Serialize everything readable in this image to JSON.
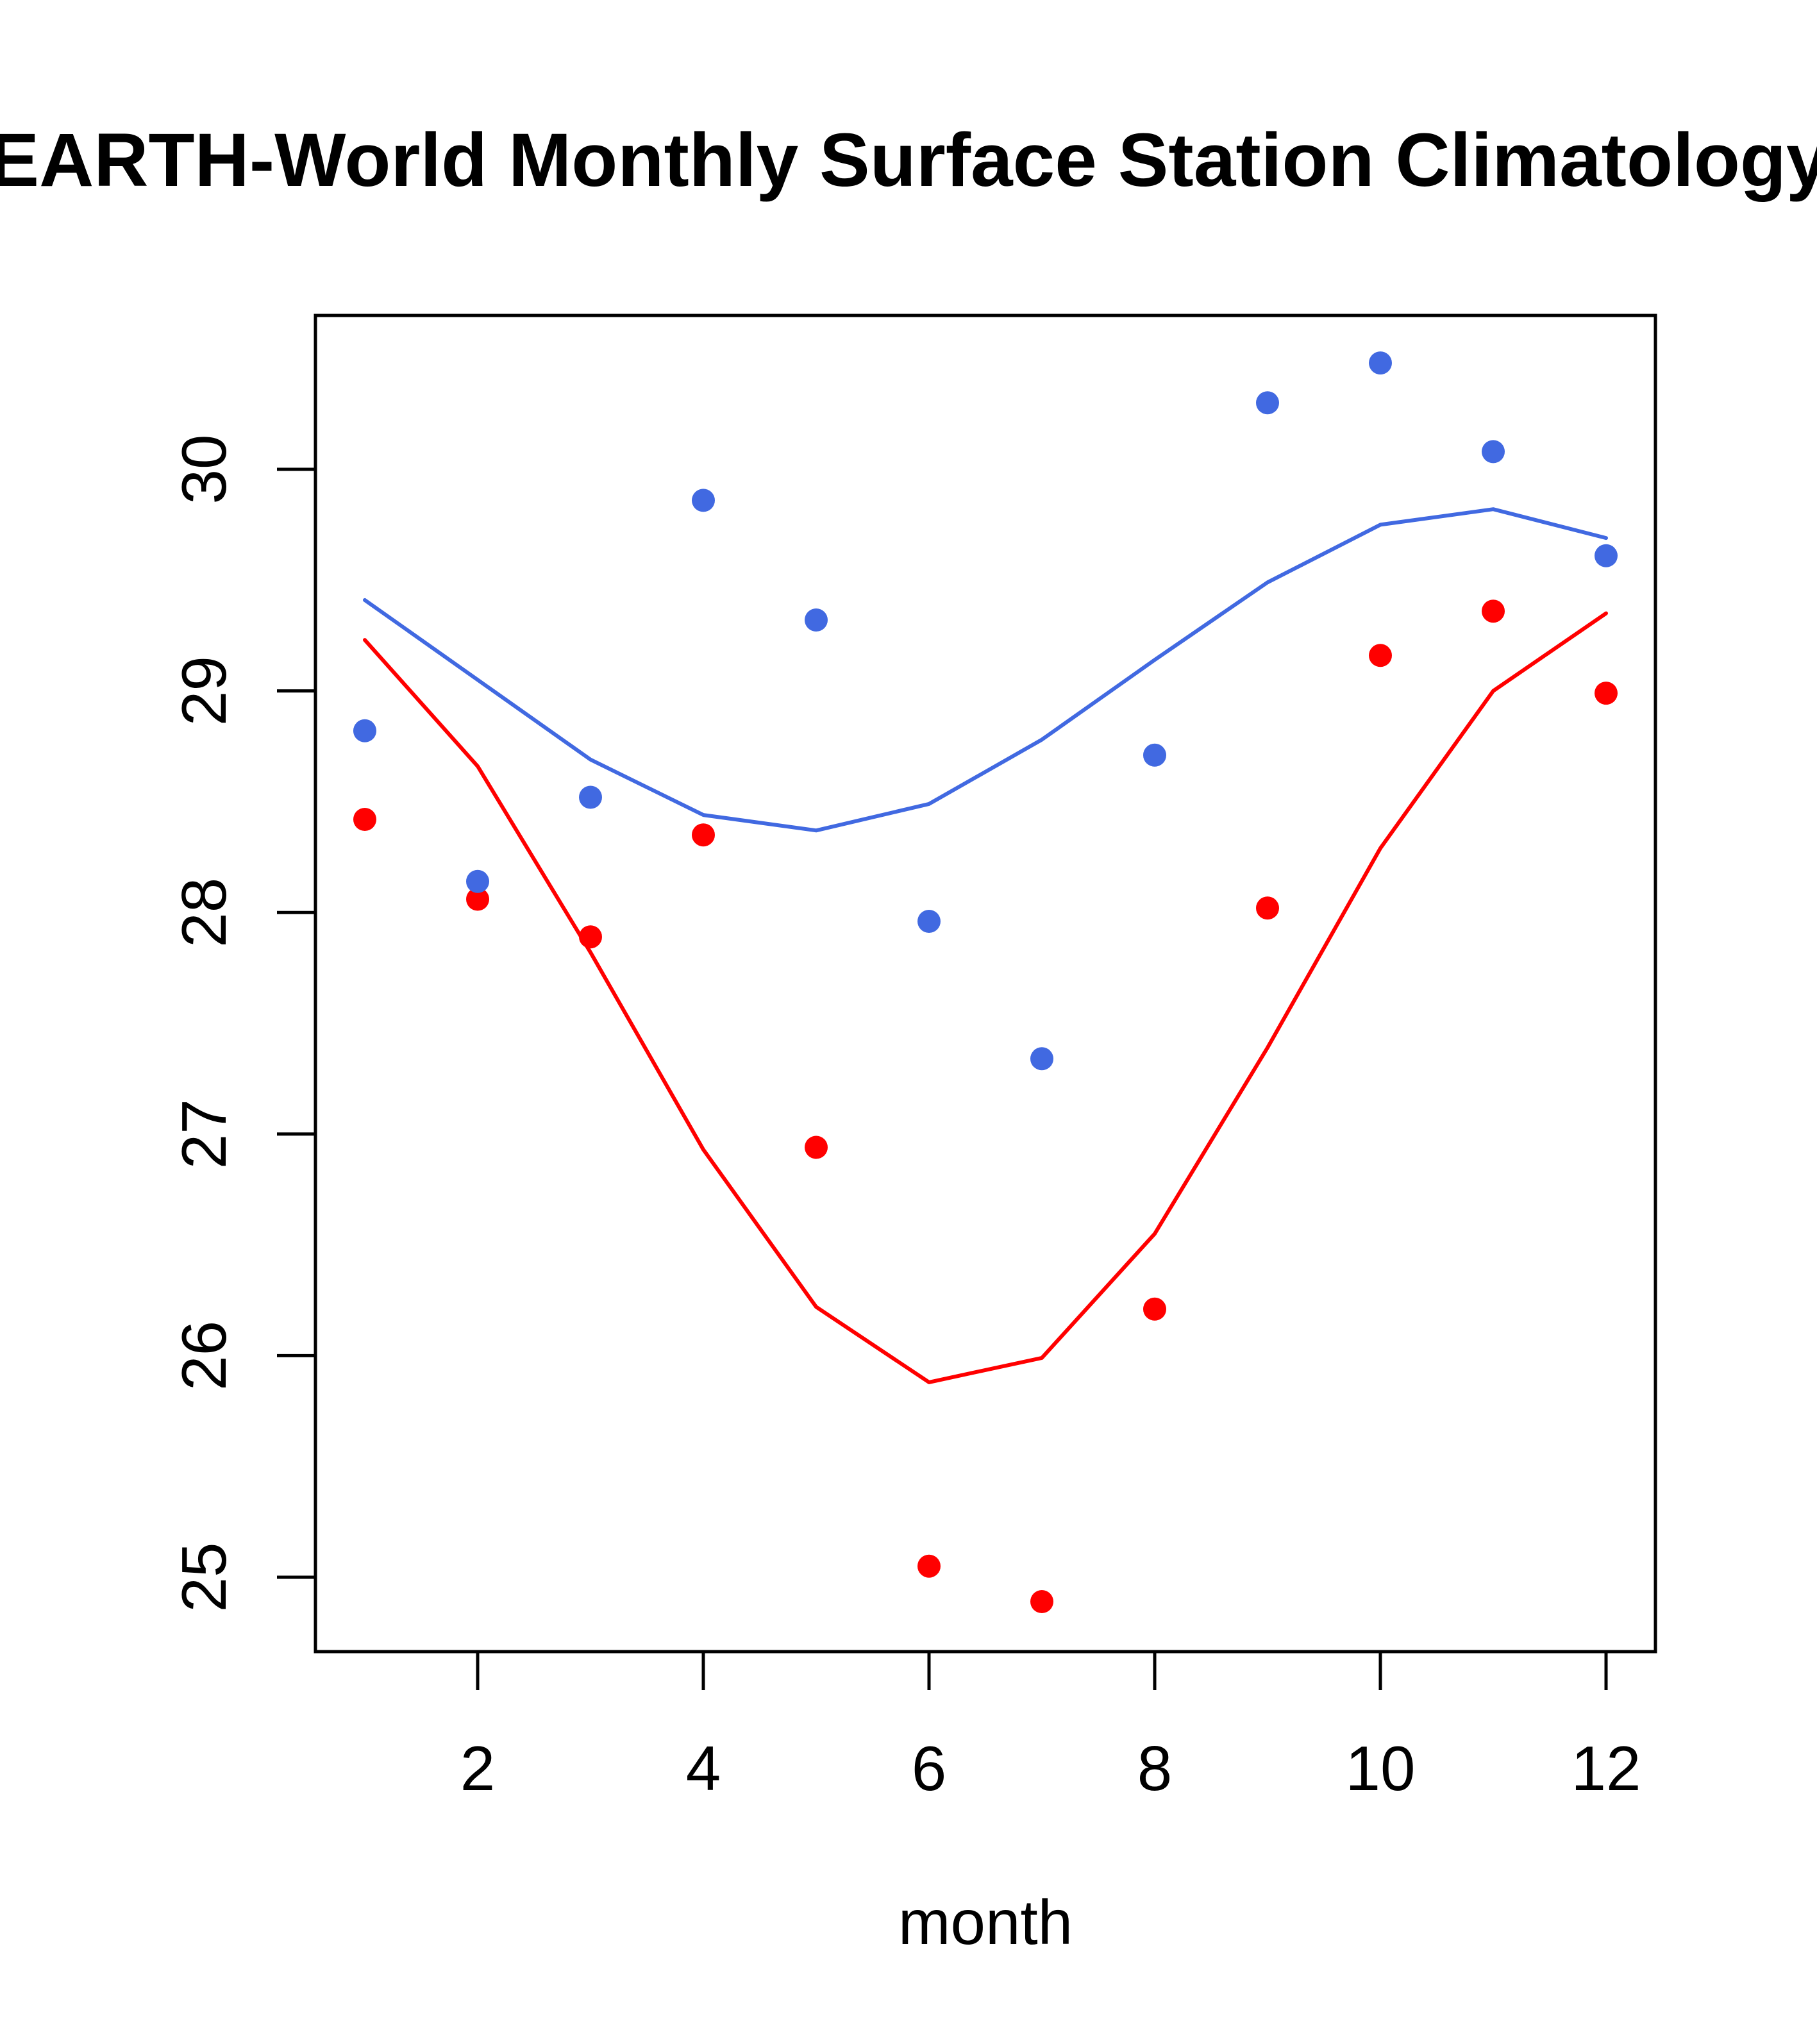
{
  "chart_data": {
    "type": "scatter",
    "title": "EARTH-World Monthly Surface Station Climatology",
    "xlabel": "month",
    "ylabel": "",
    "xlim": [
      0.57,
      12.43
    ],
    "ylim": [
      24.67,
      30.7
    ],
    "x_ticks": [
      2,
      4,
      6,
      8,
      10,
      12
    ],
    "x_tick_labels": [
      "2",
      "4",
      "6",
      "8",
      "10",
      "12"
    ],
    "y_ticks": [
      25,
      26,
      27,
      28,
      29,
      30
    ],
    "y_tick_labels": [
      "25",
      "26",
      "27",
      "28",
      "29",
      "30"
    ],
    "grid": false,
    "legend": "none",
    "x": [
      1,
      2,
      3,
      4,
      5,
      6,
      7,
      8,
      9,
      10,
      11,
      12
    ],
    "series": [
      {
        "name": "blue-points",
        "kind": "points",
        "color": "#4169E1",
        "values": [
          28.82,
          28.14,
          28.52,
          29.86,
          29.32,
          27.96,
          27.34,
          28.71,
          30.3,
          30.48,
          30.08,
          29.61
        ]
      },
      {
        "name": "red-points",
        "kind": "points",
        "color": "#FF0000",
        "values": [
          28.42,
          28.06,
          27.89,
          28.35,
          26.94,
          25.05,
          24.89,
          26.21,
          28.02,
          29.16,
          29.36,
          28.99
        ]
      },
      {
        "name": "blue-line",
        "kind": "line",
        "color": "#4169E1",
        "values": [
          29.41,
          29.05,
          28.69,
          28.44,
          28.37,
          28.49,
          28.78,
          29.14,
          29.49,
          29.75,
          29.82,
          29.69
        ]
      },
      {
        "name": "red-line",
        "kind": "line",
        "color": "#FF0000",
        "values": [
          29.23,
          28.66,
          27.82,
          26.93,
          26.22,
          25.88,
          25.99,
          26.55,
          27.39,
          28.29,
          29.0,
          29.35
        ]
      }
    ]
  }
}
